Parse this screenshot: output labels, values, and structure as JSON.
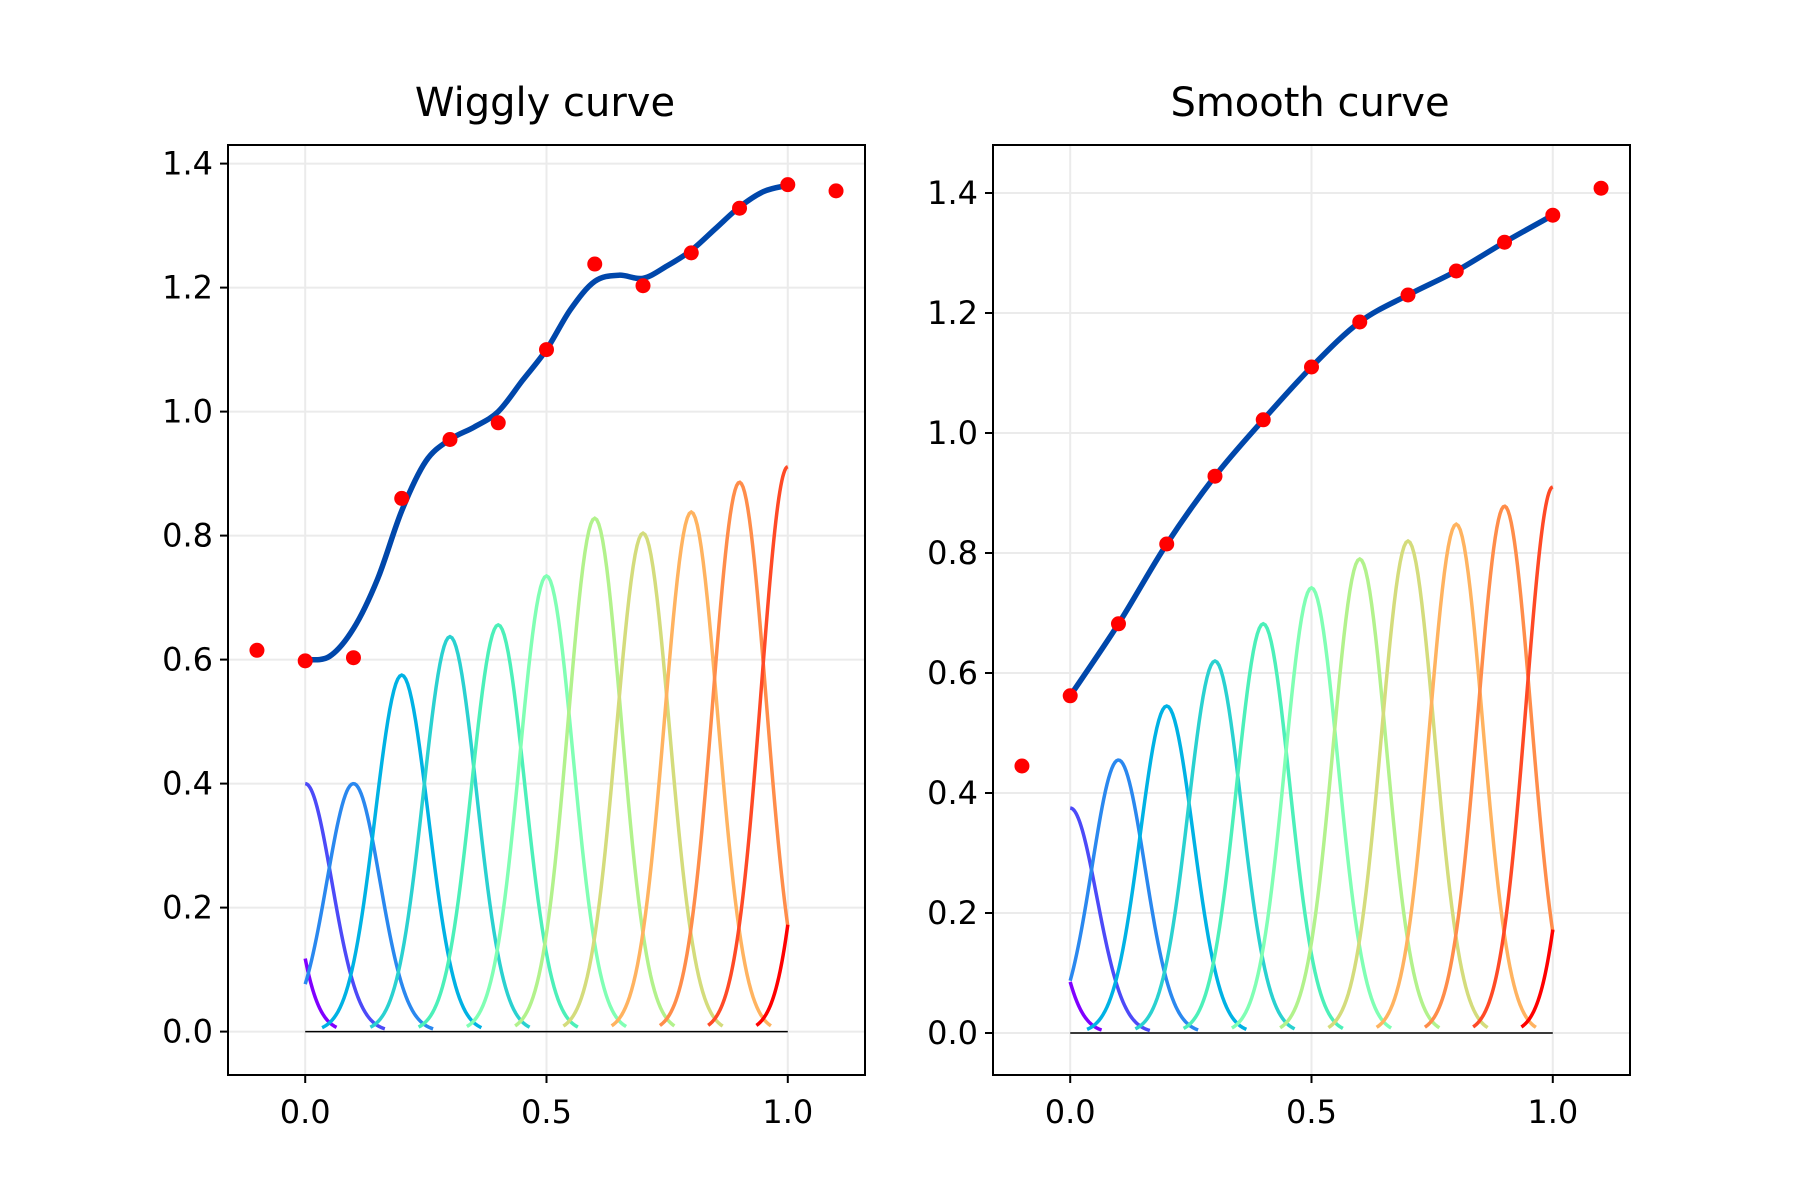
{
  "chart_data": [
    {
      "type": "line",
      "title": "Wiggly curve",
      "xlabel": "",
      "ylabel": "",
      "xlim": [
        -0.16,
        1.16
      ],
      "ylim": [
        -0.07,
        1.43
      ],
      "xticks": [
        0.0,
        0.5,
        1.0
      ],
      "xtick_labels": [
        "0.0",
        "0.5",
        "1.0"
      ],
      "yticks": [
        0.0,
        0.2,
        0.4,
        0.6,
        0.8,
        1.0,
        1.2,
        1.4
      ],
      "ytick_labels": [
        "0.0",
        "0.2",
        "0.4",
        "0.6",
        "0.8",
        "1.0",
        "1.2",
        "1.4"
      ],
      "grid": true,
      "points": {
        "x": [
          -0.1,
          0.0,
          0.1,
          0.2,
          0.3,
          0.4,
          0.5,
          0.6,
          0.7,
          0.8,
          0.9,
          1.0,
          1.1
        ],
        "y": [
          0.615,
          0.598,
          0.603,
          0.86,
          0.955,
          0.982,
          1.1,
          1.238,
          1.203,
          1.256,
          1.328,
          1.366,
          1.356
        ],
        "color": "#ff0000"
      },
      "curve": {
        "x": [
          0.0,
          0.05,
          0.1,
          0.15,
          0.2,
          0.25,
          0.3,
          0.35,
          0.4,
          0.45,
          0.5,
          0.55,
          0.6,
          0.65,
          0.7,
          0.75,
          0.8,
          0.85,
          0.9,
          0.95,
          1.0
        ],
        "y": [
          0.6,
          0.605,
          0.65,
          0.73,
          0.84,
          0.92,
          0.955,
          0.975,
          1.0,
          1.05,
          1.1,
          1.165,
          1.21,
          1.22,
          1.215,
          1.235,
          1.26,
          1.295,
          1.33,
          1.355,
          1.365
        ],
        "color": "#0047ab"
      },
      "basis": {
        "centers": [
          -0.1,
          0.0,
          0.1,
          0.2,
          0.3,
          0.4,
          0.5,
          0.6,
          0.7,
          0.8,
          0.9,
          1.0,
          1.1
        ],
        "heights": [
          0.615,
          0.4,
          0.4,
          0.575,
          0.637,
          0.656,
          0.735,
          0.828,
          0.804,
          0.838,
          0.886,
          0.911,
          0.9
        ],
        "width": 0.055,
        "colors": [
          "#8000ff",
          "#4c4af8",
          "#2a88ef",
          "#00b2e4",
          "#2ad1d0",
          "#4cf0b9",
          "#80ffb4",
          "#b2f28c",
          "#d4dc7c",
          "#ffb360",
          "#ff8d4a",
          "#ff4a26",
          "#ff0000"
        ]
      }
    },
    {
      "type": "line",
      "title": "Smooth curve",
      "xlabel": "",
      "ylabel": "",
      "xlim": [
        -0.16,
        1.16
      ],
      "ylim": [
        -0.07,
        1.48
      ],
      "xticks": [
        0.0,
        0.5,
        1.0
      ],
      "xtick_labels": [
        "0.0",
        "0.5",
        "1.0"
      ],
      "yticks": [
        0.0,
        0.2,
        0.4,
        0.6,
        0.8,
        1.0,
        1.2,
        1.4
      ],
      "ytick_labels": [
        "0.0",
        "0.2",
        "0.4",
        "0.6",
        "0.8",
        "1.0",
        "1.2",
        "1.4"
      ],
      "grid": true,
      "points": {
        "x": [
          -0.1,
          0.0,
          0.1,
          0.2,
          0.3,
          0.4,
          0.5,
          0.6,
          0.7,
          0.8,
          0.9,
          1.0,
          1.1
        ],
        "y": [
          0.445,
          0.562,
          0.682,
          0.815,
          0.928,
          1.022,
          1.11,
          1.185,
          1.23,
          1.27,
          1.318,
          1.363,
          1.408
        ],
        "color": "#ff0000"
      },
      "curve": {
        "x": [
          0.0,
          0.1,
          0.2,
          0.3,
          0.4,
          0.5,
          0.6,
          0.7,
          0.8,
          0.9,
          1.0
        ],
        "y": [
          0.562,
          0.682,
          0.815,
          0.928,
          1.022,
          1.11,
          1.185,
          1.23,
          1.27,
          1.318,
          1.363
        ],
        "color": "#0047ab"
      },
      "basis": {
        "centers": [
          -0.1,
          0.0,
          0.1,
          0.2,
          0.3,
          0.4,
          0.5,
          0.6,
          0.7,
          0.8,
          0.9,
          1.0,
          1.1
        ],
        "heights": [
          0.445,
          0.375,
          0.455,
          0.545,
          0.62,
          0.682,
          0.742,
          0.79,
          0.82,
          0.848,
          0.878,
          0.91,
          0.9
        ],
        "width": 0.055,
        "colors": [
          "#8000ff",
          "#4c4af8",
          "#2a88ef",
          "#00b2e4",
          "#2ad1d0",
          "#4cf0b9",
          "#80ffb4",
          "#b2f28c",
          "#d4dc7c",
          "#ffb360",
          "#ff8d4a",
          "#ff4a26",
          "#ff0000"
        ]
      }
    }
  ]
}
